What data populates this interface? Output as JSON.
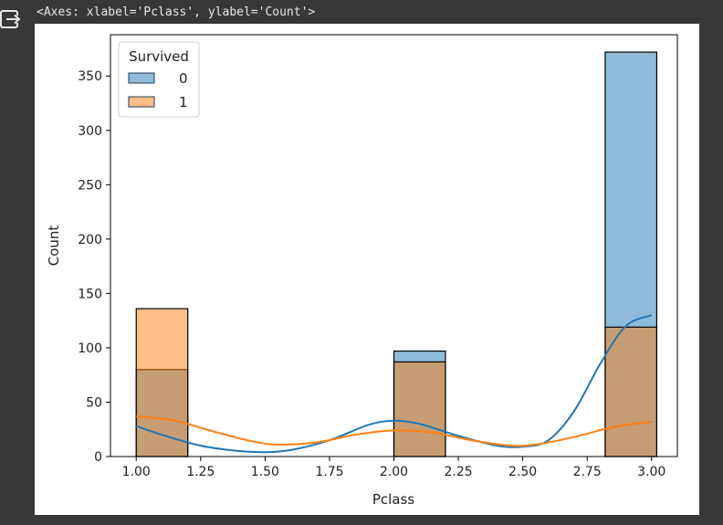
{
  "output": {
    "repr_text": "<Axes: xlabel='Pclass', ylabel='Count'>",
    "icon": "output-redirect-icon"
  },
  "chart_data": {
    "type": "histogram",
    "title": "",
    "xlabel": "Pclass",
    "ylabel": "Count",
    "xlim": [
      0.9,
      3.1
    ],
    "ylim": [
      0,
      388
    ],
    "xticks": [
      "1.00",
      "1.25",
      "1.50",
      "1.75",
      "2.00",
      "2.25",
      "2.50",
      "2.75",
      "3.00"
    ],
    "yticks": [
      "0",
      "50",
      "100",
      "150",
      "200",
      "250",
      "300",
      "350"
    ],
    "bin_width": 0.2,
    "bins": [
      1.0,
      2.0,
      2.82
    ],
    "legend": {
      "title": "Survived",
      "placement": "top-left",
      "entries": [
        "0",
        "1"
      ]
    },
    "series": [
      {
        "name": "0",
        "color": "#1f77b4",
        "values": [
          80,
          97,
          372
        ]
      },
      {
        "name": "1",
        "color": "#ff7f0e",
        "values": [
          136,
          87,
          119
        ]
      }
    ],
    "kde": [
      {
        "name": "0",
        "color": "#1f77b4",
        "points": [
          [
            1.0,
            28
          ],
          [
            1.1,
            20
          ],
          [
            1.25,
            10
          ],
          [
            1.4,
            5
          ],
          [
            1.5,
            4
          ],
          [
            1.6,
            6
          ],
          [
            1.75,
            15
          ],
          [
            1.9,
            29
          ],
          [
            2.0,
            33
          ],
          [
            2.1,
            30
          ],
          [
            2.25,
            19
          ],
          [
            2.4,
            10
          ],
          [
            2.5,
            9
          ],
          [
            2.6,
            15
          ],
          [
            2.7,
            42
          ],
          [
            2.8,
            85
          ],
          [
            2.9,
            120
          ],
          [
            3.0,
            130
          ]
        ]
      },
      {
        "name": "1",
        "color": "#ff7f0e",
        "points": [
          [
            1.0,
            37
          ],
          [
            1.15,
            33
          ],
          [
            1.3,
            23
          ],
          [
            1.45,
            14
          ],
          [
            1.55,
            11
          ],
          [
            1.7,
            13
          ],
          [
            1.85,
            20
          ],
          [
            2.0,
            24
          ],
          [
            2.15,
            22
          ],
          [
            2.3,
            15
          ],
          [
            2.45,
            10
          ],
          [
            2.55,
            11
          ],
          [
            2.7,
            18
          ],
          [
            2.85,
            27
          ],
          [
            3.0,
            32
          ]
        ]
      }
    ]
  }
}
